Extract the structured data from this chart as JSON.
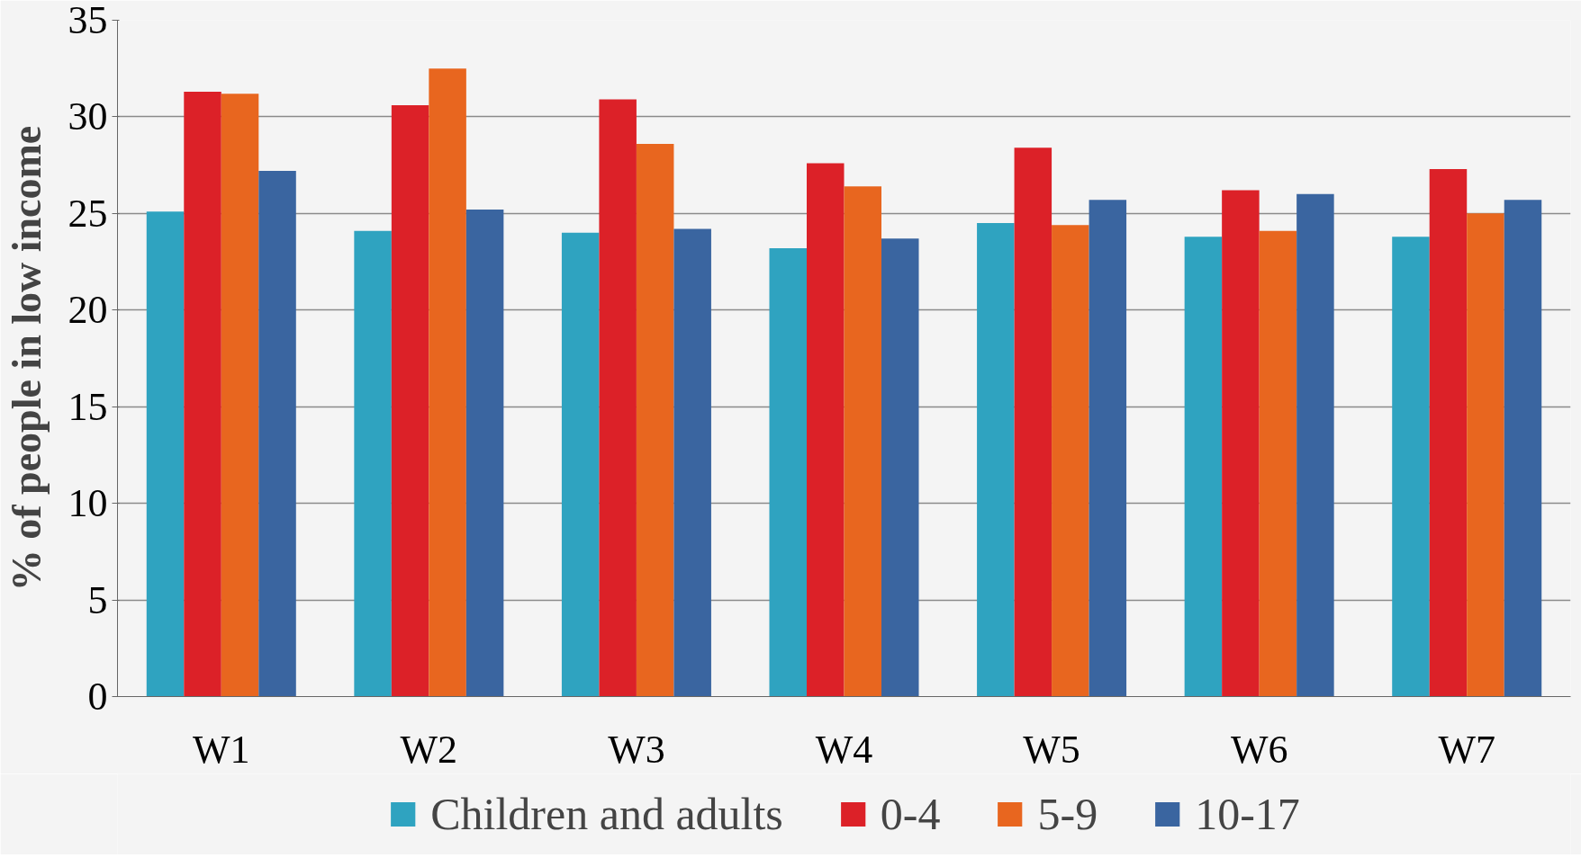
{
  "chart_data": {
    "type": "bar",
    "ylabel": "% of people in low income",
    "categories": [
      "W1",
      "W2",
      "W3",
      "W4",
      "W5",
      "W6",
      "W7"
    ],
    "series": [
      {
        "name": "Children and adults",
        "color": "#2fa3c0",
        "values": [
          25.1,
          24.1,
          24.0,
          23.2,
          24.5,
          23.8,
          23.8
        ]
      },
      {
        "name": "0-4",
        "color": "#dc2128",
        "values": [
          31.3,
          30.6,
          30.9,
          27.6,
          28.4,
          26.2,
          27.3
        ]
      },
      {
        "name": "5-9",
        "color": "#e8661f",
        "values": [
          31.2,
          32.5,
          28.6,
          26.4,
          24.4,
          24.1,
          25.0
        ]
      },
      {
        "name": "10-17",
        "color": "#3a65a0",
        "values": [
          27.2,
          25.2,
          24.2,
          23.7,
          25.7,
          26.0,
          25.7
        ]
      }
    ],
    "ylim": [
      0,
      35
    ],
    "yticks": [
      0,
      5,
      10,
      15,
      20,
      25,
      30,
      35
    ],
    "grid": "y",
    "legend": "bottom"
  }
}
